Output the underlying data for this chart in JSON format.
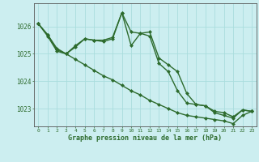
{
  "xlabel": "Graphe pression niveau de la mer (hPa)",
  "background_color": "#cceef0",
  "grid_color": "#aadddd",
  "line_color": "#2d6b2d",
  "hours": [
    0,
    1,
    2,
    3,
    4,
    5,
    6,
    7,
    8,
    9,
    10,
    11,
    12,
    13,
    14,
    15,
    16,
    17,
    18,
    19,
    20,
    21,
    22,
    23
  ],
  "line1": [
    1026.1,
    1025.7,
    1025.2,
    1025.0,
    1025.25,
    1025.55,
    1025.5,
    1025.5,
    1025.6,
    1026.5,
    1025.8,
    1025.75,
    1025.8,
    1024.85,
    1024.6,
    1024.35,
    1023.55,
    1023.15,
    1023.1,
    1022.9,
    1022.85,
    1022.7,
    1022.95,
    1022.9
  ],
  "line2": [
    1026.1,
    1025.7,
    1025.15,
    1025.0,
    1025.3,
    1025.55,
    1025.5,
    1025.45,
    1025.55,
    1026.5,
    1025.3,
    1025.75,
    1025.65,
    1024.65,
    1024.35,
    1023.65,
    1023.2,
    1023.15,
    1023.1,
    1022.85,
    1022.75,
    1022.65,
    1022.95,
    1022.9
  ],
  "line3": [
    1026.1,
    1025.65,
    1025.1,
    1025.0,
    1024.8,
    1024.6,
    1024.4,
    1024.2,
    1024.05,
    1023.85,
    1023.65,
    1023.5,
    1023.3,
    1023.15,
    1023.0,
    1022.85,
    1022.75,
    1022.7,
    1022.65,
    1022.6,
    1022.55,
    1022.45,
    1022.75,
    1022.9
  ],
  "ylim_min": 1022.35,
  "ylim_max": 1026.85,
  "yticks": [
    1023,
    1024,
    1025,
    1026
  ],
  "marker_size": 2.5,
  "line_width": 1.0
}
